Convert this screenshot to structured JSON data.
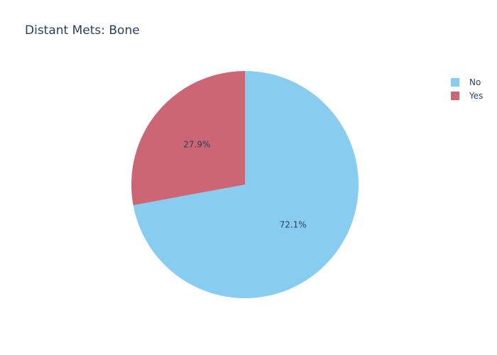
{
  "chart_data": {
    "type": "pie",
    "title": "Distant Mets: Bone",
    "labels": [
      "No",
      "Yes"
    ],
    "values": [
      72.1,
      27.9
    ],
    "percent_labels": [
      "72.1%",
      "27.9%"
    ],
    "colors": [
      "#88cdef",
      "#cc6674"
    ],
    "start_angle_deg": 90,
    "direction": "clockwise",
    "legend_position": "top-right"
  },
  "legend": {
    "items": [
      {
        "label": "No",
        "color": "#88cdef"
      },
      {
        "label": "Yes",
        "color": "#cc6674"
      }
    ]
  }
}
